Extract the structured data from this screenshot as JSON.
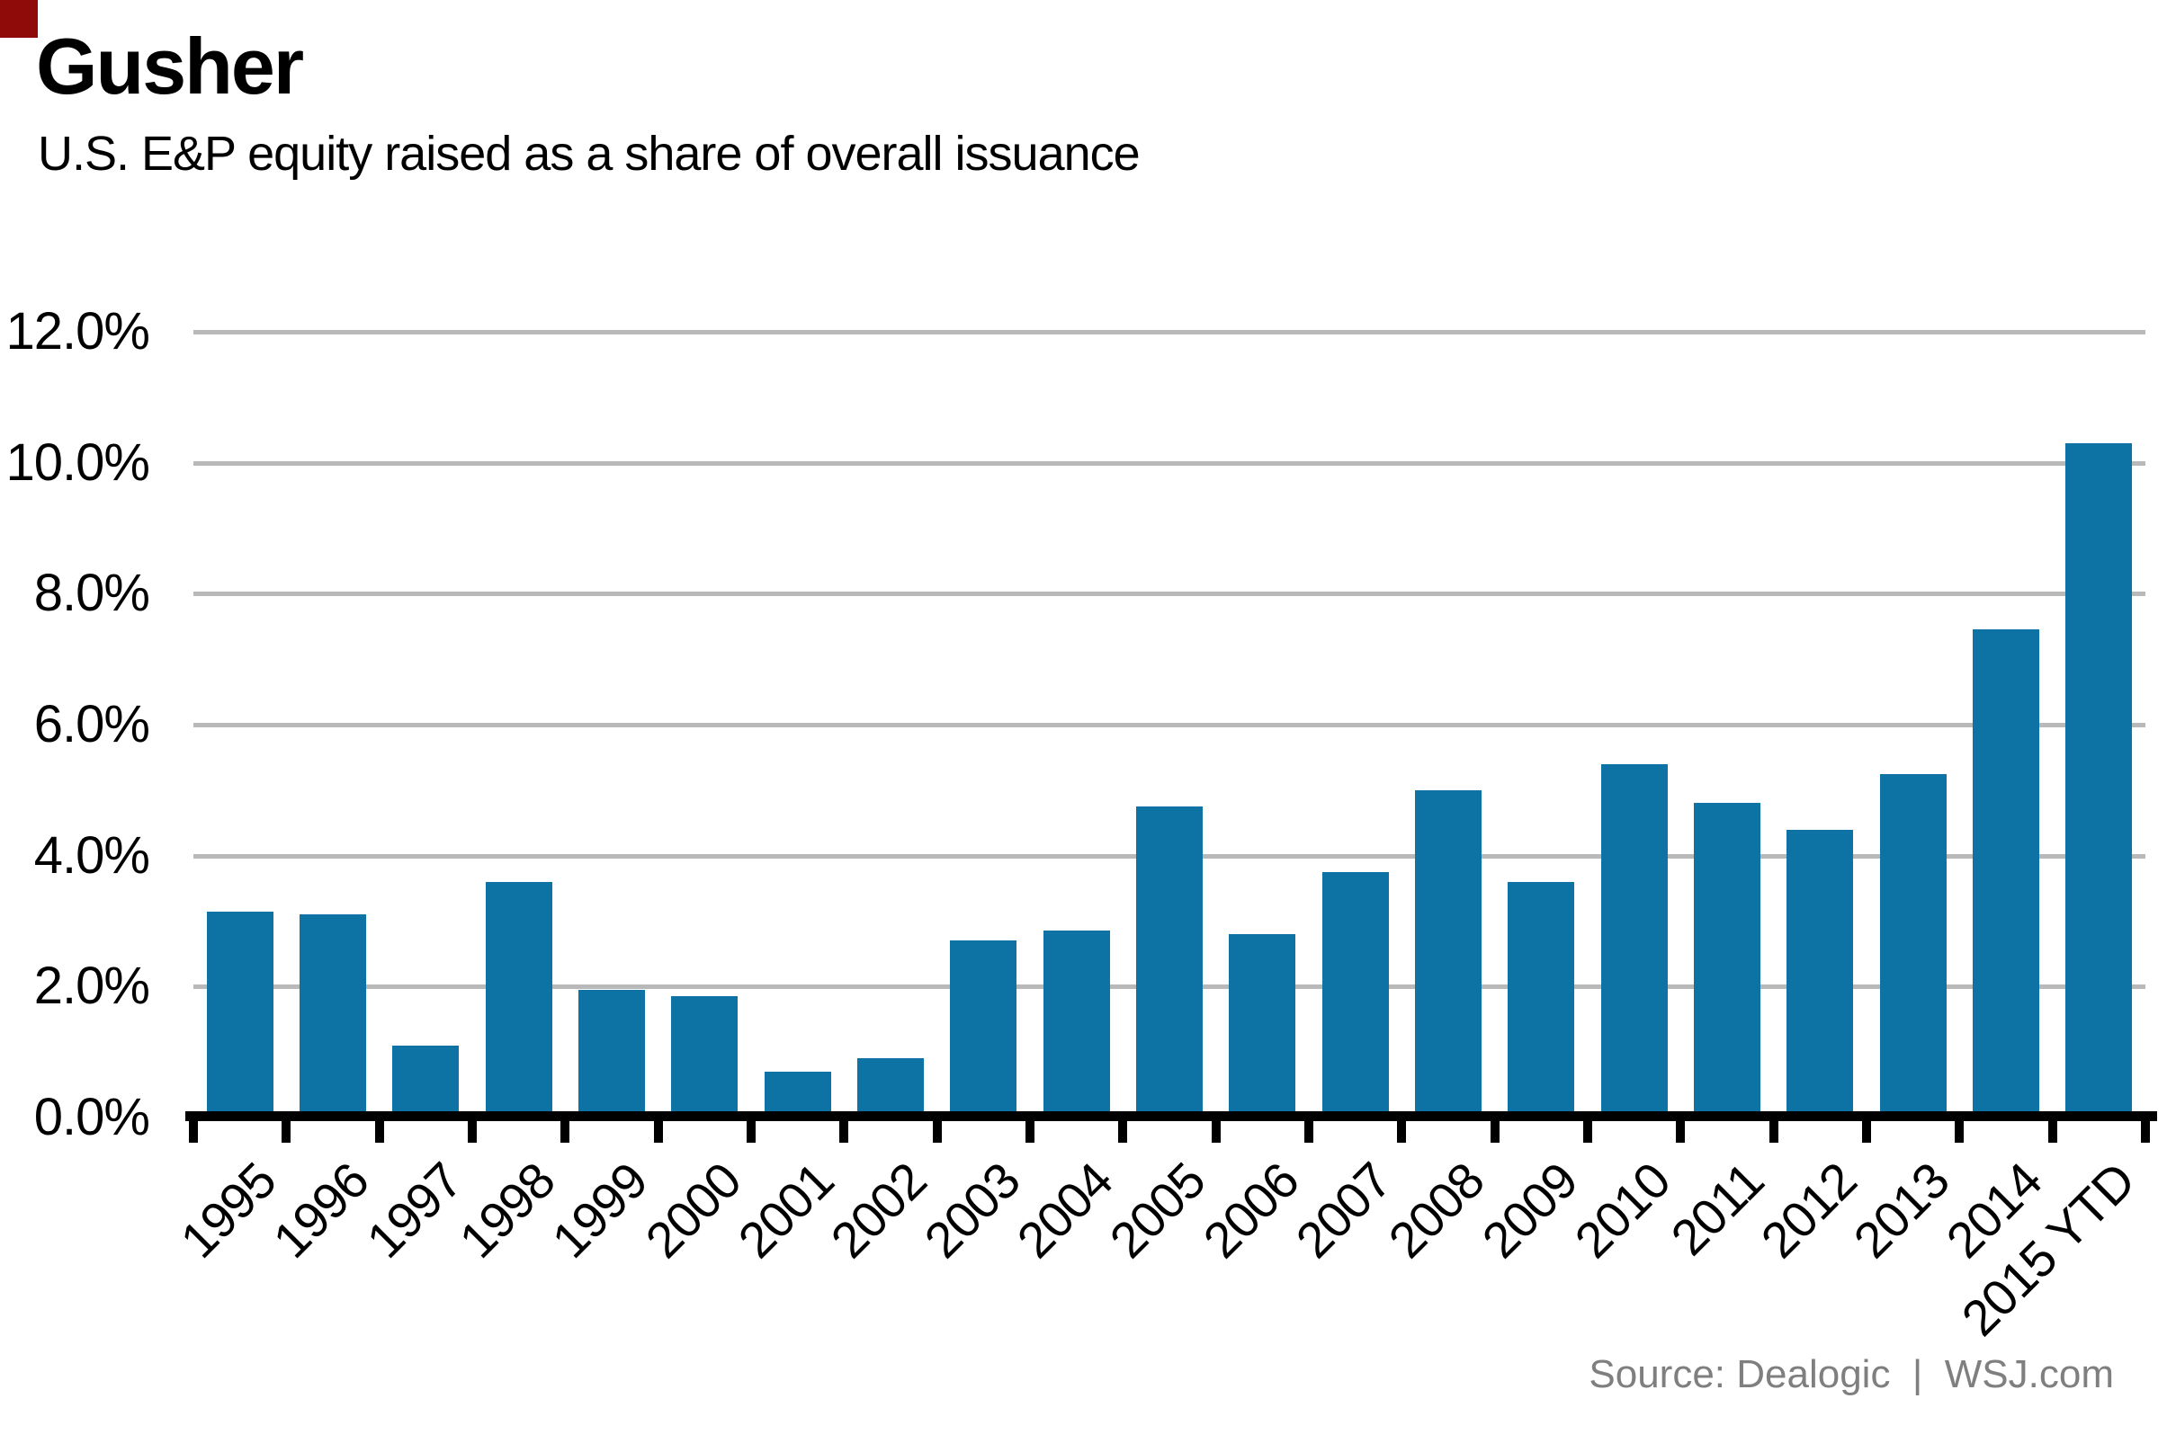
{
  "chart_data": {
    "type": "bar",
    "title": "Gusher",
    "subtitle": "U.S. E&P equity raised as a share of overall issuance",
    "categories": [
      "1995",
      "1996",
      "1997",
      "1998",
      "1999",
      "2000",
      "2001",
      "2002",
      "2003",
      "2004",
      "2005",
      "2006",
      "2007",
      "2008",
      "2009",
      "2010",
      "2011",
      "2012",
      "2013",
      "2014",
      "2015 YTD"
    ],
    "values": [
      3.15,
      3.1,
      1.1,
      3.6,
      1.95,
      1.85,
      0.7,
      0.9,
      2.7,
      2.85,
      4.75,
      2.8,
      3.75,
      5.0,
      3.6,
      5.4,
      4.8,
      4.4,
      5.25,
      7.45,
      10.3
    ],
    "value_unit": "%",
    "ytick_labels": [
      "12.0%",
      "10.0%",
      "8.0%",
      "6.0%",
      "4.0%",
      "2.0%",
      "0.0%"
    ],
    "ytick_values": [
      12,
      10,
      8,
      6,
      4,
      2,
      0
    ],
    "ylim": [
      0,
      12
    ],
    "grid": true,
    "legend": false,
    "bar_color": "#0c73a4",
    "gridline_color": "#b9b9b9",
    "axis_color": "#000000",
    "text_color": "#000000",
    "source": "Source: Dealogic  |  WSJ.com",
    "source_color": "#7f7f7f"
  },
  "decor": {
    "corner_marker_color": "#8e0b0a"
  }
}
